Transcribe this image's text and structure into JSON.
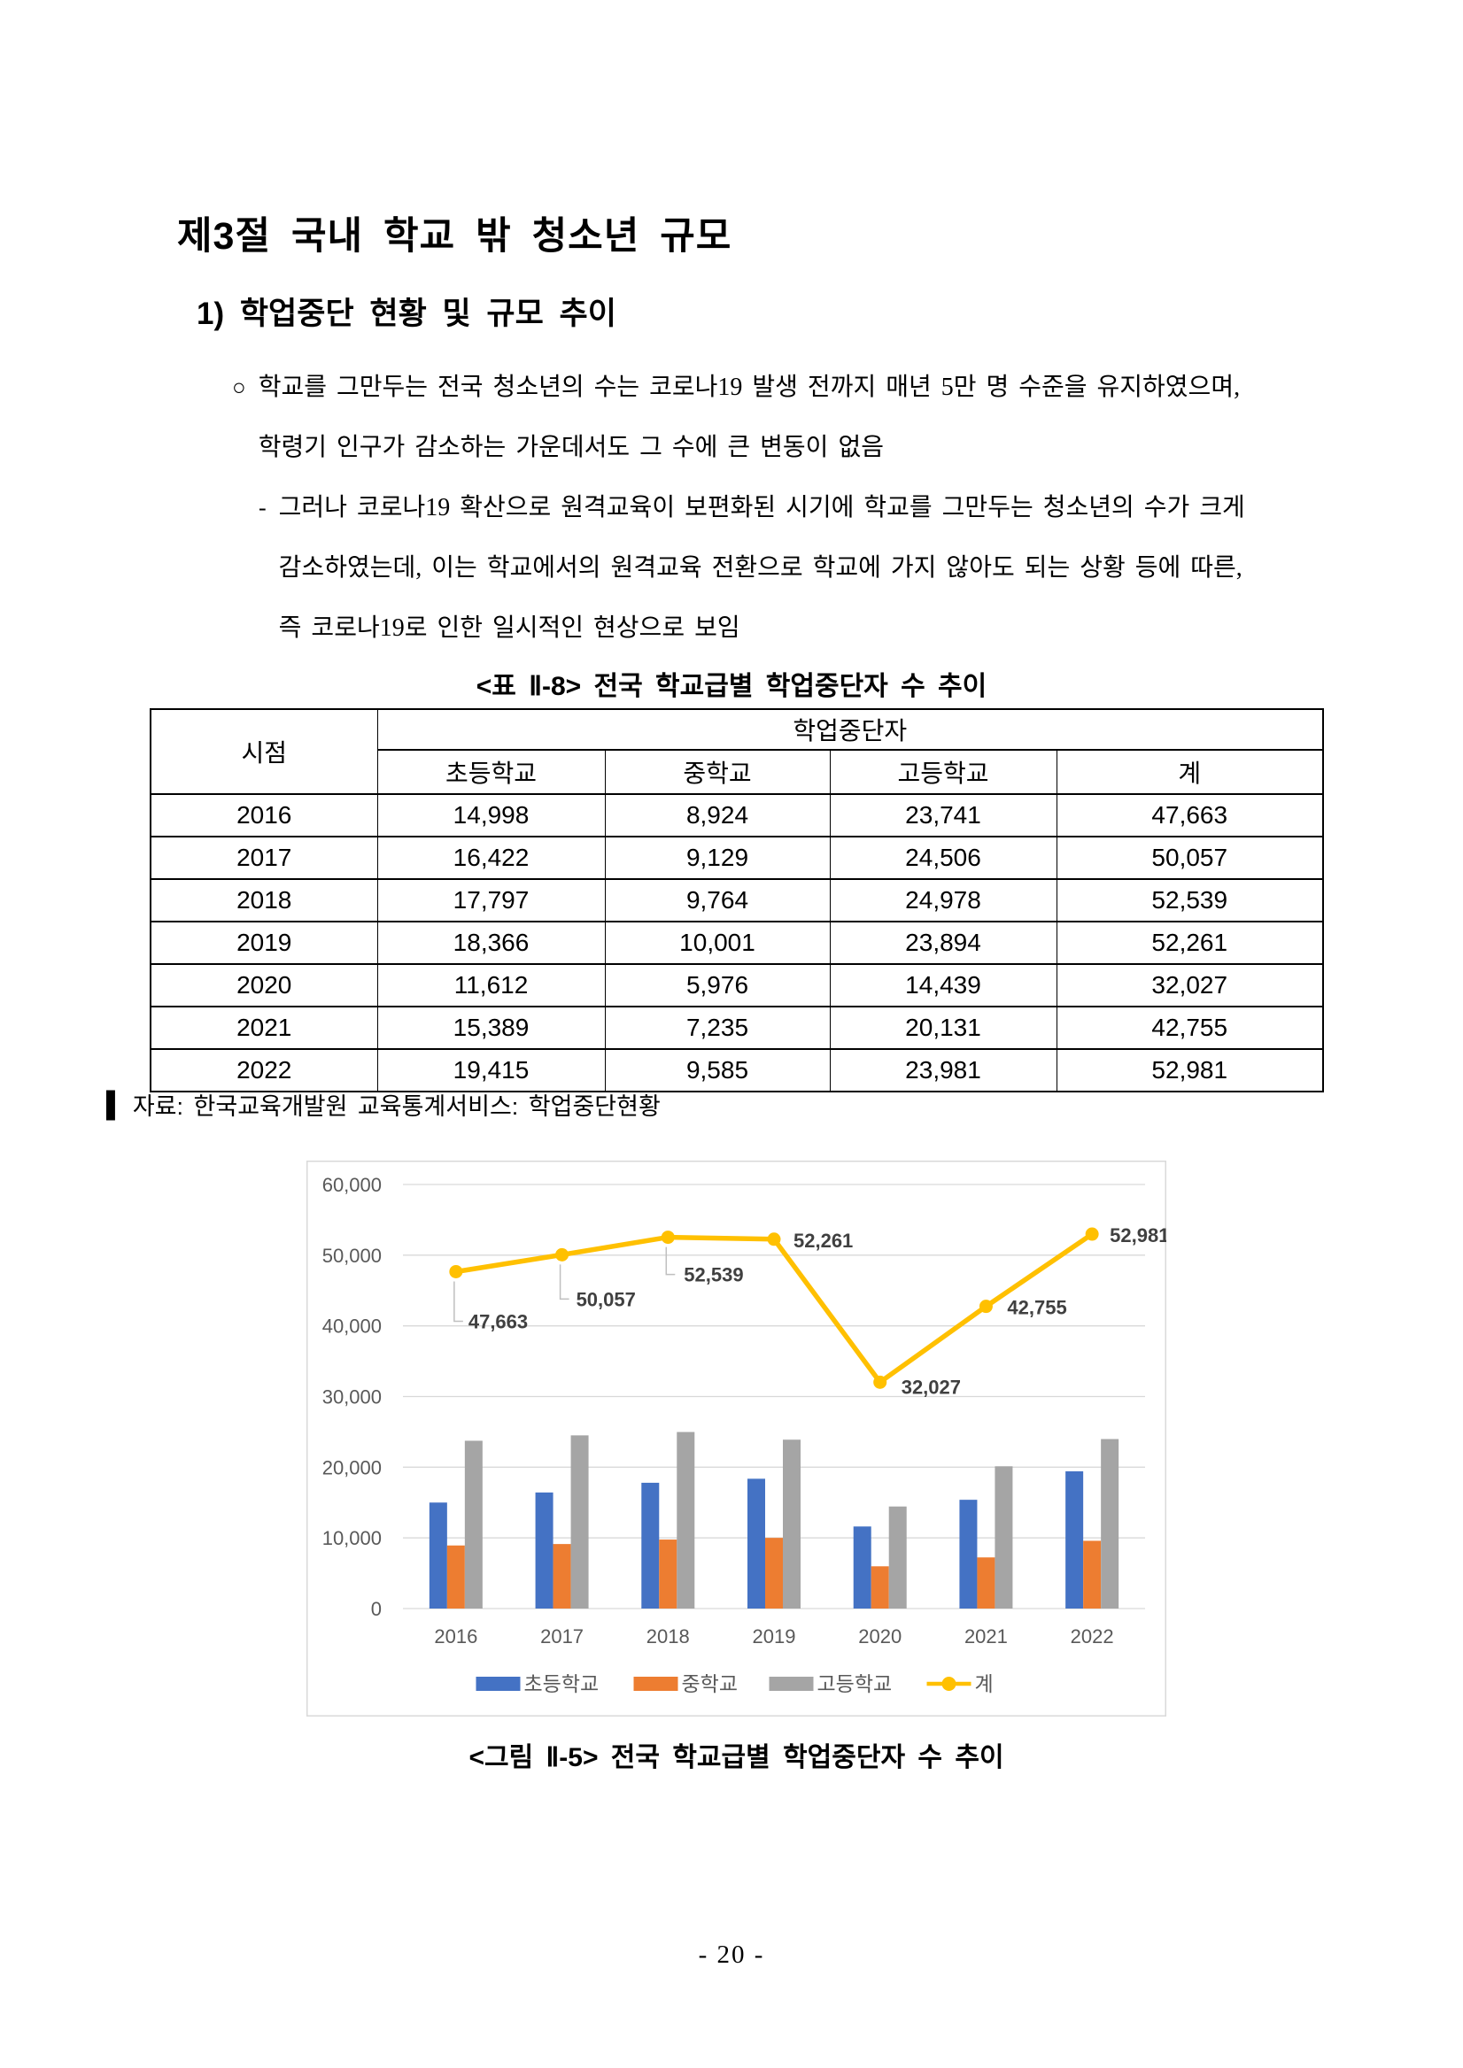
{
  "page": {
    "section_title": "제3절 국내 학교 밖 청소년 규모",
    "subsection_title": "1) 학업중단 현황 및 규모 추이",
    "page_number": "- 20 -"
  },
  "paragraphs": {
    "bullet_marker": "○",
    "bullet_line1": "학교를 그만두는 전국 청소년의 수는 코로나19 발생 전까지 매년 5만 명 수준을 유지하였으며,",
    "bullet_line2": "학령기 인구가 감소하는 가운데서도 그 수에 큰 변동이 없음",
    "dash_marker": "-",
    "dash_line1": "그러나 코로나19 확산으로 원격교육이 보편화된 시기에 학교를 그만두는 청소년의 수가 크게",
    "dash_line2": "감소하였는데, 이는 학교에서의 원격교육 전환으로 학교에 가지 않아도 되는 상황 등에 따른,",
    "dash_line3": "즉 코로나19로 인한 일시적인 현상으로 보임"
  },
  "table": {
    "caption": "<표 Ⅱ-8> 전국 학교급별 학업중단자 수 추이",
    "header": {
      "col_time": "시점",
      "group": "학업중단자",
      "cols": [
        "초등학교",
        "중학교",
        "고등학교",
        "계"
      ]
    },
    "rows": [
      {
        "year": "2016",
        "values": [
          "14,998",
          "8,924",
          "23,741",
          "47,663"
        ]
      },
      {
        "year": "2017",
        "values": [
          "16,422",
          "9,129",
          "24,506",
          "50,057"
        ]
      },
      {
        "year": "2018",
        "values": [
          "17,797",
          "9,764",
          "24,978",
          "52,539"
        ]
      },
      {
        "year": "2019",
        "values": [
          "18,366",
          "10,001",
          "23,894",
          "52,261"
        ]
      },
      {
        "year": "2020",
        "values": [
          "11,612",
          "5,976",
          "14,439",
          "32,027"
        ]
      },
      {
        "year": "2021",
        "values": [
          "15,389",
          "7,235",
          "20,131",
          "42,755"
        ]
      },
      {
        "year": "2022",
        "values": [
          "19,415",
          "9,585",
          "23,981",
          "52,981"
        ]
      }
    ],
    "source_marker": "▌",
    "source": "자료: 한국교육개발원 교육통계서비스: 학업중단현황"
  },
  "figure": {
    "caption": "<그림 Ⅱ-5> 전국 학교급별 학업중단자 수 추이"
  },
  "chart_data": {
    "type": "bar+line",
    "categories": [
      "2016",
      "2017",
      "2018",
      "2019",
      "2020",
      "2021",
      "2022"
    ],
    "series": [
      {
        "name": "초등학교",
        "type": "bar",
        "color": "#4472C4",
        "values": [
          14998,
          16422,
          17797,
          18366,
          11612,
          15389,
          19415
        ]
      },
      {
        "name": "중학교",
        "type": "bar",
        "color": "#ED7D31",
        "values": [
          8924,
          9129,
          9764,
          10001,
          5976,
          7235,
          9585
        ]
      },
      {
        "name": "고등학교",
        "type": "bar",
        "color": "#A5A5A5",
        "values": [
          23741,
          24506,
          24978,
          23894,
          14439,
          20131,
          23981
        ]
      },
      {
        "name": "계",
        "type": "line",
        "color": "#FFC000",
        "values": [
          47663,
          50057,
          52539,
          52261,
          32027,
          42755,
          52981
        ],
        "labels": [
          "47,663",
          "50,057",
          "52,539",
          "52,261",
          "32,027",
          "42,755",
          "52,981"
        ]
      }
    ],
    "ylim": [
      0,
      60000
    ],
    "ytick_step": 10000,
    "yticks": [
      "0",
      "10,000",
      "20,000",
      "30,000",
      "40,000",
      "50,000",
      "60,000"
    ],
    "grid": true,
    "legend_position": "bottom-inside",
    "colors": {
      "grid": "#D9D9D9",
      "border": "#D9D9D9",
      "tick_label": "#595959",
      "data_label": "#404040"
    }
  }
}
